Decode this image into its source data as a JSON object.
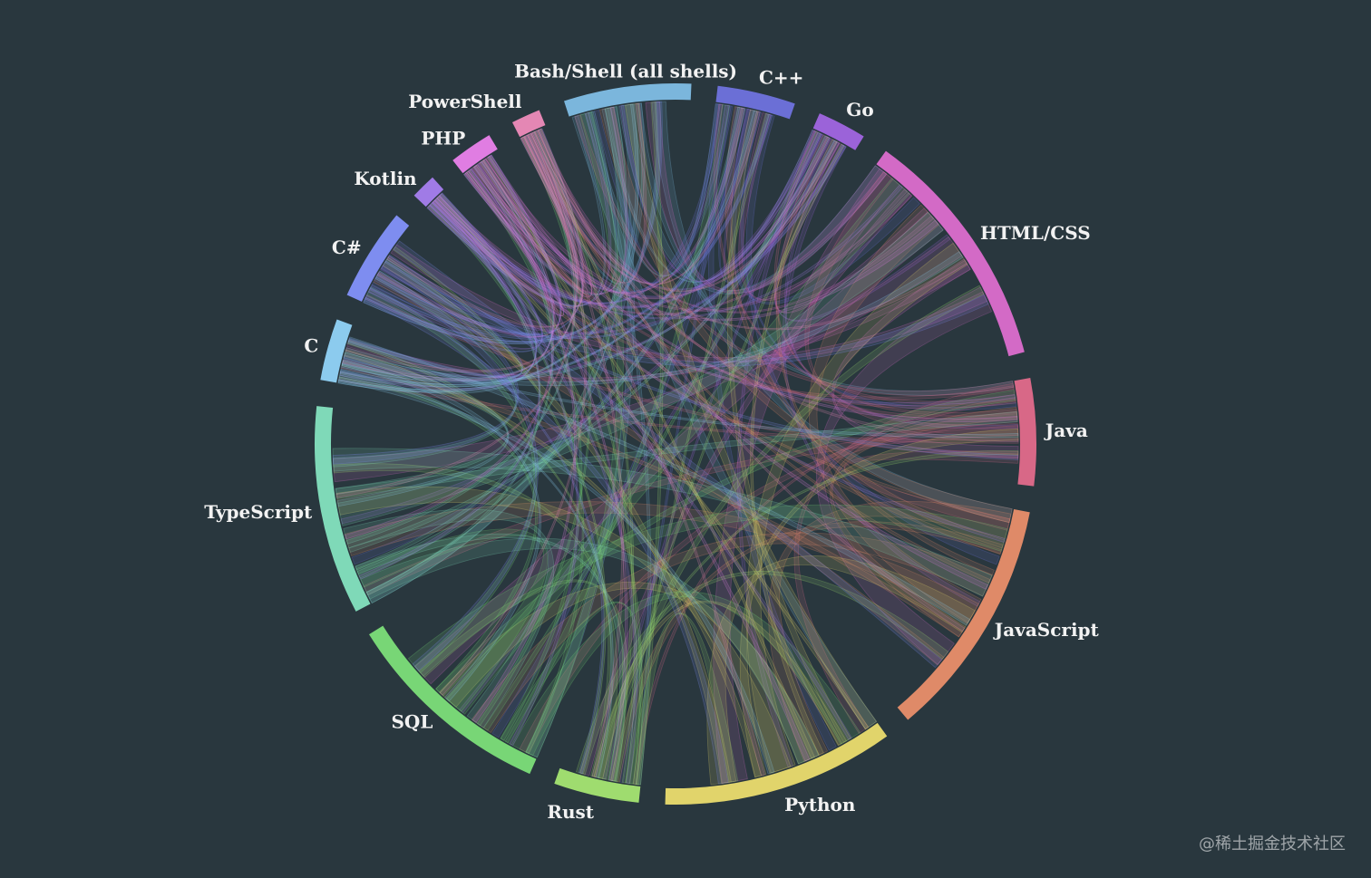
{
  "watermark": "@稀土掘金技术社区",
  "chart_data": {
    "type": "chord",
    "segments": [
      {
        "name": "Bash/Shell (all shells)",
        "share": 7.0,
        "color": "#7bb6dc"
      },
      {
        "name": "C++",
        "share": 4.3,
        "color": "#6b6fd6"
      },
      {
        "name": "Go",
        "share": 2.7,
        "color": "#9b63d9"
      },
      {
        "name": "HTML/CSS",
        "share": 13.5,
        "color": "#d36ac6"
      },
      {
        "name": "Java",
        "share": 5.9,
        "color": "#d86887"
      },
      {
        "name": "JavaScript",
        "share": 13.3,
        "color": "#df8a68"
      },
      {
        "name": "Python",
        "share": 12.8,
        "color": "#e1d46b"
      },
      {
        "name": "Rust",
        "share": 4.7,
        "color": "#9fdc6f"
      },
      {
        "name": "SQL",
        "share": 11.7,
        "color": "#78d676"
      },
      {
        "name": "TypeScript",
        "share": 11.5,
        "color": "#7fd9b8"
      },
      {
        "name": "C",
        "share": 3.4,
        "color": "#8ccbee"
      },
      {
        "name": "C#",
        "share": 5.1,
        "color": "#7e8df0"
      },
      {
        "name": "Kotlin",
        "share": 1.4,
        "color": "#a07be6"
      },
      {
        "name": "PHP",
        "share": 2.4,
        "color": "#e07de2"
      },
      {
        "name": "PowerShell",
        "share": 1.6,
        "color": "#e487b4"
      }
    ]
  }
}
